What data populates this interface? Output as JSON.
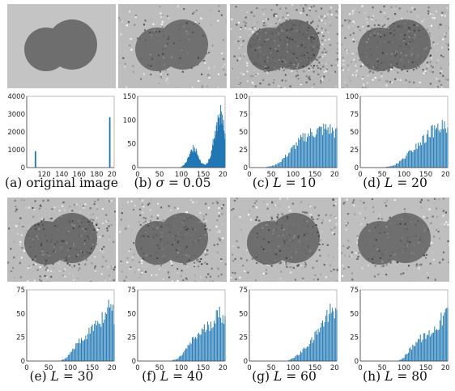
{
  "panels": [
    {
      "id": "a",
      "caption_prefix": "(a) ",
      "caption_sym": "",
      "caption_rest": "original image",
      "noise": 0,
      "bgcolor": "#c4c4c4",
      "blobcolor": "#6e6e6e"
    },
    {
      "id": "b",
      "caption_prefix": "(b) ",
      "caption_sym": "σ",
      "caption_rest": " = 0.05",
      "noise": 0.18,
      "bgcolor": "#bdbdbd",
      "blobcolor": "#636363"
    },
    {
      "id": "c",
      "caption_prefix": "(c) ",
      "caption_sym": "L",
      "caption_rest": " = 10",
      "noise": 0.55,
      "bgcolor": "#b8b8b8",
      "blobcolor": "#5c5c5c"
    },
    {
      "id": "d",
      "caption_prefix": "(d) ",
      "caption_sym": "L",
      "caption_rest": " = 20",
      "noise": 0.45,
      "bgcolor": "#bbbbbb",
      "blobcolor": "#5e5e5e"
    },
    {
      "id": "e",
      "caption_prefix": "(e) ",
      "caption_sym": "L",
      "caption_rest": " = 30",
      "noise": 0.4,
      "bgcolor": "#bcbcbc",
      "blobcolor": "#5f5f5f"
    },
    {
      "id": "f",
      "caption_prefix": "(f) ",
      "caption_sym": "L",
      "caption_rest": " = 40",
      "noise": 0.36,
      "bgcolor": "#bdbdbd",
      "blobcolor": "#606060"
    },
    {
      "id": "g",
      "caption_prefix": "(g) ",
      "caption_sym": "L",
      "caption_rest": " = 60",
      "noise": 0.3,
      "bgcolor": "#bebebe",
      "blobcolor": "#616161"
    },
    {
      "id": "h",
      "caption_prefix": "(h) ",
      "caption_sym": "L",
      "caption_rest": " = 80",
      "noise": 0.26,
      "bgcolor": "#bfbfbf",
      "blobcolor": "#626262"
    }
  ],
  "colors": {
    "bar": "#1f77b4",
    "axis": "#444444"
  },
  "chart_data": [
    {
      "panel": "a",
      "type": "bar",
      "xlim": [
        100,
        200
      ],
      "ylim": [
        0,
        4000
      ],
      "xticks": [
        120,
        140,
        160,
        180,
        200
      ],
      "yticks": [
        0,
        1000,
        2000,
        3000,
        4000
      ],
      "x": [
        110,
        195
      ],
      "values": [
        1050,
        3200
      ]
    },
    {
      "panel": "b",
      "type": "bar",
      "xlim": [
        0,
        200
      ],
      "ylim": [
        0,
        150
      ],
      "xticks": [
        0,
        50,
        100,
        150,
        200
      ],
      "yticks": [
        0,
        50,
        100,
        150
      ],
      "x": [
        100,
        105,
        110,
        115,
        120,
        125,
        130,
        135,
        140,
        145,
        150,
        155,
        160,
        165,
        170,
        175,
        180,
        185,
        190,
        195,
        200
      ],
      "values": [
        2,
        5,
        10,
        18,
        28,
        38,
        42,
        35,
        22,
        12,
        8,
        6,
        10,
        20,
        40,
        60,
        80,
        100,
        110,
        95,
        60
      ]
    },
    {
      "panel": "c",
      "type": "bar",
      "xlim": [
        0,
        200
      ],
      "ylim": [
        0,
        100
      ],
      "xticks": [
        0,
        50,
        100,
        150,
        200
      ],
      "yticks": [
        0,
        25,
        50,
        75,
        100
      ],
      "x": [
        40,
        50,
        60,
        70,
        80,
        90,
        100,
        110,
        120,
        130,
        140,
        150,
        160,
        170,
        180,
        190,
        200
      ],
      "values": [
        1,
        2,
        4,
        8,
        14,
        20,
        28,
        34,
        40,
        45,
        48,
        50,
        52,
        54,
        55,
        52,
        48
      ]
    },
    {
      "panel": "d",
      "type": "bar",
      "xlim": [
        0,
        200
      ],
      "ylim": [
        0,
        100
      ],
      "xticks": [
        0,
        50,
        100,
        150,
        200
      ],
      "yticks": [
        0,
        25,
        50,
        75,
        100
      ],
      "x": [
        60,
        70,
        80,
        90,
        100,
        110,
        120,
        130,
        140,
        150,
        160,
        170,
        180,
        190,
        200
      ],
      "values": [
        1,
        2,
        4,
        8,
        14,
        20,
        26,
        32,
        38,
        44,
        48,
        52,
        55,
        58,
        50
      ]
    },
    {
      "panel": "e",
      "type": "bar",
      "xlim": [
        0,
        200
      ],
      "ylim": [
        0,
        75
      ],
      "xticks": [
        0,
        50,
        100,
        150,
        200
      ],
      "yticks": [
        0,
        25,
        50,
        75
      ],
      "x": [
        80,
        90,
        100,
        110,
        120,
        130,
        140,
        150,
        160,
        170,
        180,
        190,
        200
      ],
      "values": [
        1,
        3,
        8,
        14,
        20,
        25,
        30,
        34,
        38,
        44,
        50,
        55,
        48
      ]
    },
    {
      "panel": "f",
      "type": "bar",
      "xlim": [
        0,
        200
      ],
      "ylim": [
        0,
        75
      ],
      "xticks": [
        0,
        50,
        100,
        150,
        200
      ],
      "yticks": [
        0,
        25,
        50,
        75
      ],
      "x": [
        80,
        90,
        100,
        110,
        120,
        130,
        140,
        150,
        160,
        170,
        180,
        190,
        200
      ],
      "values": [
        1,
        2,
        6,
        12,
        18,
        24,
        28,
        32,
        36,
        42,
        46,
        50,
        45
      ]
    },
    {
      "panel": "g",
      "type": "bar",
      "xlim": [
        0,
        200
      ],
      "ylim": [
        0,
        75
      ],
      "xticks": [
        0,
        50,
        100,
        150,
        200
      ],
      "yticks": [
        0,
        25,
        50,
        75
      ],
      "x": [
        90,
        100,
        110,
        120,
        130,
        140,
        150,
        160,
        170,
        180,
        190,
        200
      ],
      "values": [
        1,
        3,
        6,
        10,
        14,
        20,
        26,
        32,
        40,
        50,
        62,
        45
      ]
    },
    {
      "panel": "h",
      "type": "bar",
      "xlim": [
        0,
        200
      ],
      "ylim": [
        0,
        75
      ],
      "xticks": [
        0,
        50,
        100,
        150,
        200
      ],
      "yticks": [
        0,
        25,
        50,
        75
      ],
      "x": [
        90,
        100,
        110,
        120,
        130,
        140,
        150,
        160,
        170,
        180,
        190,
        200
      ],
      "values": [
        1,
        4,
        10,
        16,
        22,
        24,
        26,
        30,
        34,
        40,
        46,
        52
      ]
    }
  ]
}
